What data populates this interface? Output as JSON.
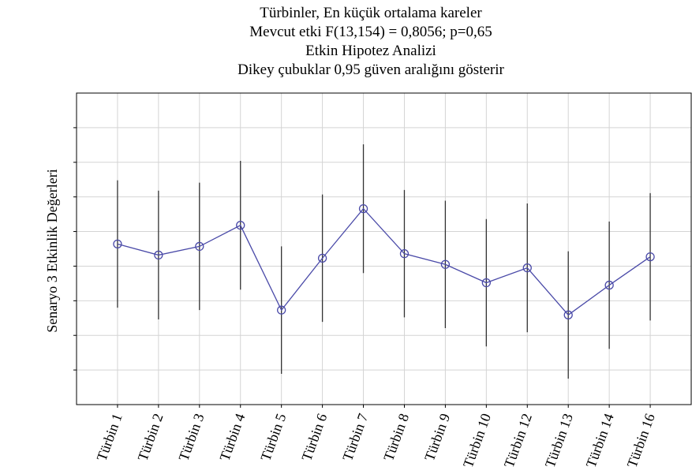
{
  "chart_data": {
    "type": "errorbar_line",
    "title": "Türbinler, En küçük ortalama kareler",
    "subtitle": [
      "Mevcut etki F(13,154) = 0,8056; p=0,65",
      "Etkin Hipotez Analizi",
      "Dikey çubuklar 0,95 güven aralığını gösterir"
    ],
    "ylabel": "Senaryo 3 Etkinlik Değerleri",
    "categories": [
      "Türbin 1",
      "Türbin 2",
      "Türbin 3",
      "Türbin 4",
      "Türbin 5",
      "Türbin 6",
      "Türbin 7",
      "Türbin 8",
      "Türbin 9",
      "Türbin 10",
      "Türbin 12",
      "Türbin 13",
      "Türbin 14",
      "Türbin 16"
    ],
    "values": [
      4.64,
      4.32,
      4.57,
      5.18,
      2.73,
      4.23,
      5.66,
      4.36,
      4.05,
      3.52,
      3.95,
      2.59,
      3.45,
      4.27
    ],
    "errors": [
      1.84,
      1.86,
      1.84,
      1.86,
      1.84,
      1.84,
      1.86,
      1.84,
      1.84,
      1.84,
      1.86,
      1.84,
      1.84,
      1.84
    ],
    "color": "#4a4aa8",
    "ylim": [
      0,
      9
    ],
    "yticks": [
      1,
      2,
      3,
      4,
      5,
      6,
      7,
      8
    ],
    "grid": true
  }
}
